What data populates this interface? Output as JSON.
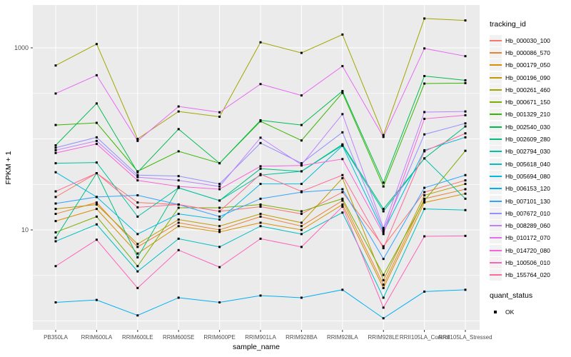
{
  "chart_data": {
    "type": "line",
    "title": "",
    "xlabel": "sample_name",
    "ylabel": "FPKM + 1",
    "y_scale": "log10",
    "ylim": [
      0.8,
      2900
    ],
    "grid": "on",
    "legend_position": "right",
    "y_ticks": [
      {
        "value": 1000,
        "label": "1000"
      },
      {
        "value": 10,
        "label": "10"
      }
    ],
    "y_gridlines_major": [
      1,
      10,
      100,
      1000
    ],
    "y_gridlines_minor": [
      3.16,
      31.6,
      316
    ],
    "categories": [
      "PB350LA",
      "RRIM600LA",
      "RRIM600LE",
      "RRIM600SE",
      "RRIM600PE",
      "RRIM901LA",
      "RRIM928BA",
      "RRIM928LA",
      "RRIM928LE",
      "RRII105LA_Control",
      "RRII105LA_Stressed"
    ],
    "point_shape": "square",
    "point_color": "#000000",
    "series": [
      {
        "name": "Hb_000030_100",
        "color": "#F8766D",
        "values": [
          23,
          42,
          20,
          19,
          16,
          18,
          15,
          26,
          6.6,
          26,
          35
        ]
      },
      {
        "name": "Hb_000086_570",
        "color": "#EA8331",
        "values": [
          15,
          20,
          6.5,
          12,
          10,
          14,
          11,
          21,
          2.5,
          22,
          28
        ]
      },
      {
        "name": "Hb_000179_050",
        "color": "#D89000",
        "values": [
          12.5,
          17,
          5.5,
          11,
          9.5,
          12,
          10,
          19,
          2.3,
          20,
          25
        ]
      },
      {
        "name": "Hb_000196_090",
        "color": "#C09B00",
        "values": [
          17,
          19,
          7,
          13,
          11,
          15,
          12,
          37,
          2.8,
          24,
          32
        ]
      },
      {
        "name": "Hb_000261_460",
        "color": "#A3A500",
        "values": [
          640,
          1100,
          100,
          200,
          175,
          1150,
          880,
          1400,
          110,
          2100,
          2000
        ]
      },
      {
        "name": "Hb_000671_150",
        "color": "#7CAE00",
        "values": [
          9.4,
          14,
          4,
          17.5,
          17.5,
          19,
          16,
          22,
          3.2,
          21,
          74
        ]
      },
      {
        "name": "Hb_001329_210",
        "color": "#39B600",
        "values": [
          142,
          150,
          44,
          73,
          54,
          156,
          96,
          320,
          30,
          405,
          410
        ]
      },
      {
        "name": "Hb_002540_030",
        "color": "#00BB4E",
        "values": [
          85,
          245,
          43,
          128,
          54,
          160,
          142,
          335,
          33,
          490,
          440
        ]
      },
      {
        "name": "Hb_002609_280",
        "color": "#00BF7D",
        "values": [
          8.2,
          42,
          5,
          29,
          21,
          47,
          44,
          87,
          17,
          61,
          137
        ]
      },
      {
        "name": "Hb_002794_030",
        "color": "#00C1A3",
        "values": [
          54,
          55,
          14,
          29,
          21,
          40,
          44,
          85,
          16,
          61,
          22
        ]
      },
      {
        "name": "Hb_005618_040",
        "color": "#00BFC4",
        "values": [
          7.5,
          11.5,
          3.5,
          8,
          6.5,
          11,
          9,
          15.5,
          1.8,
          17,
          16.5
        ]
      },
      {
        "name": "Hb_005694_080",
        "color": "#00BAE0",
        "values": [
          43,
          23,
          9,
          15,
          13,
          32,
          32,
          84,
          9.5,
          75,
          104
        ]
      },
      {
        "name": "Hb_006153_120",
        "color": "#00B0F6",
        "values": [
          1.6,
          1.7,
          1.15,
          1.8,
          1.6,
          1.9,
          1.8,
          2.2,
          1.07,
          2.1,
          2.2
        ]
      },
      {
        "name": "Hb_007101_130",
        "color": "#35A2FF",
        "values": [
          19.5,
          23,
          24,
          19,
          14,
          22,
          26,
          28,
          4.8,
          29,
          40
        ]
      },
      {
        "name": "Hb_007672_010",
        "color": "#9590FF",
        "values": [
          80,
          104,
          40,
          39,
          32,
          90,
          54,
          118,
          10,
          112,
          148
        ]
      },
      {
        "name": "Hb_008289_060",
        "color": "#BF80FF",
        "values": [
          75,
          95,
          38,
          35,
          30,
          103,
          52,
          187,
          10.5,
          197,
          200
        ]
      },
      {
        "name": "Hb_010172_070",
        "color": "#E76BF3",
        "values": [
          315,
          500,
          95,
          227,
          196,
          400,
          300,
          630,
          105,
          985,
          810
        ]
      },
      {
        "name": "Hb_014720_080",
        "color": "#FA62DB",
        "values": [
          70,
          88,
          35,
          30,
          28,
          50,
          51,
          60,
          9,
          166,
          182
        ]
      },
      {
        "name": "Hb_100506_010",
        "color": "#FF62BC",
        "values": [
          4.0,
          7.8,
          2.3,
          6,
          3.9,
          8,
          6.5,
          18,
          1.4,
          8.5,
          8.6
        ]
      },
      {
        "name": "Hb_155764_020",
        "color": "#FF6A98",
        "values": [
          26.5,
          42,
          17.7,
          19,
          16,
          41,
          26.5,
          40,
          6.3,
          73,
          115
        ]
      }
    ]
  },
  "legend": {
    "tracking_title": "tracking_id",
    "quant_title": "quant_status",
    "quant_items": [
      {
        "label": "OK",
        "marker": "black-square"
      }
    ]
  },
  "style": {
    "panel_bg": "#EBEBEB",
    "grid_color": "#FFFFFF",
    "tick_label_color": "#4D4D4D",
    "axis_title_color": "#000000",
    "legend_key_bg": "#F2F2F2"
  }
}
